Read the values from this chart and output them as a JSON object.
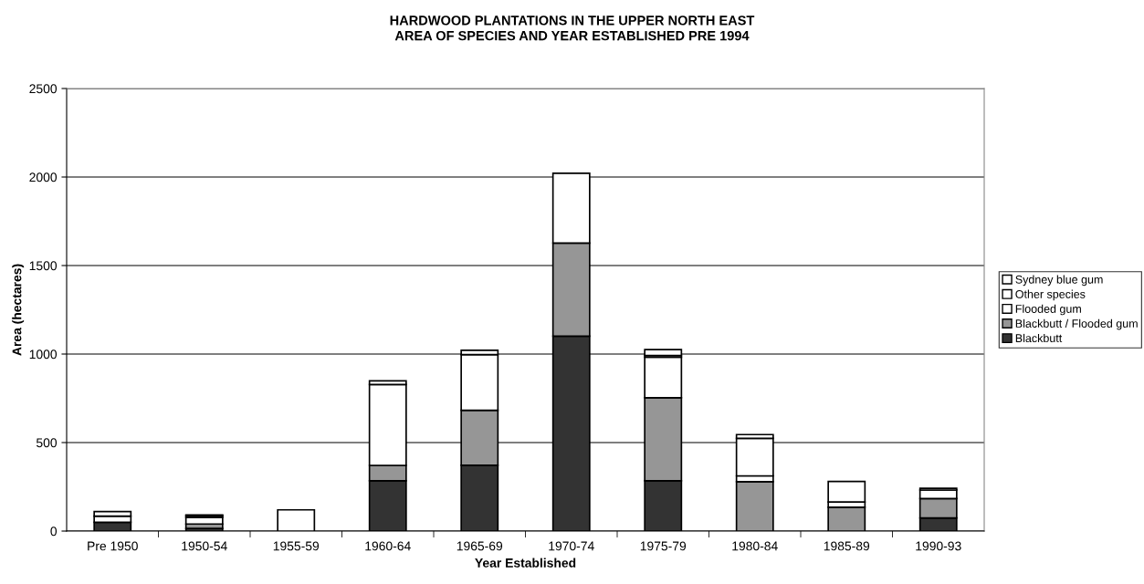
{
  "chart_data": {
    "type": "bar",
    "stacked": true,
    "title": "HARDWOOD PLANTATIONS IN THE UPPER NORTH EAST\nAREA OF SPECIES AND YEAR ESTABLISHED PRE 1994",
    "xlabel": "Year Established",
    "ylabel": "Area (hectares)",
    "categories": [
      "Pre 1950",
      "1950-54",
      "1955-59",
      "1960-64",
      "1965-69",
      "1970-74",
      "1975-79",
      "1980-84",
      "1985-89",
      "1990-93"
    ],
    "series": [
      {
        "name": "Blackbutt",
        "color": "#333333",
        "values": [
          50,
          15,
          null,
          284,
          372,
          1101,
          284,
          null,
          null,
          74
        ]
      },
      {
        "name": "Blackbutt / Flooded gum",
        "color": "#969696",
        "values": [
          null,
          25,
          null,
          87,
          310,
          526,
          469,
          279,
          135,
          110
        ]
      },
      {
        "name": "Flooded gum",
        "color": "#ffffff",
        "values": [
          34,
          38,
          120,
          457,
          315,
          394,
          229,
          33,
          29,
          48
        ]
      },
      {
        "name": "Other species",
        "color": "#ffffff",
        "values": [
          26,
          10,
          null,
          null,
          null,
          null,
          10,
          212,
          116,
          10
        ]
      },
      {
        "name": "Sydney blue gum",
        "color": "#ffffff",
        "values": [
          null,
          3,
          null,
          21,
          24,
          null,
          33,
          21,
          null,
          null
        ]
      }
    ],
    "ylim": [
      0,
      2500
    ],
    "yticks": [
      0,
      500,
      1000,
      1500,
      2000,
      2500
    ],
    "grid": "y",
    "legend": "right"
  }
}
